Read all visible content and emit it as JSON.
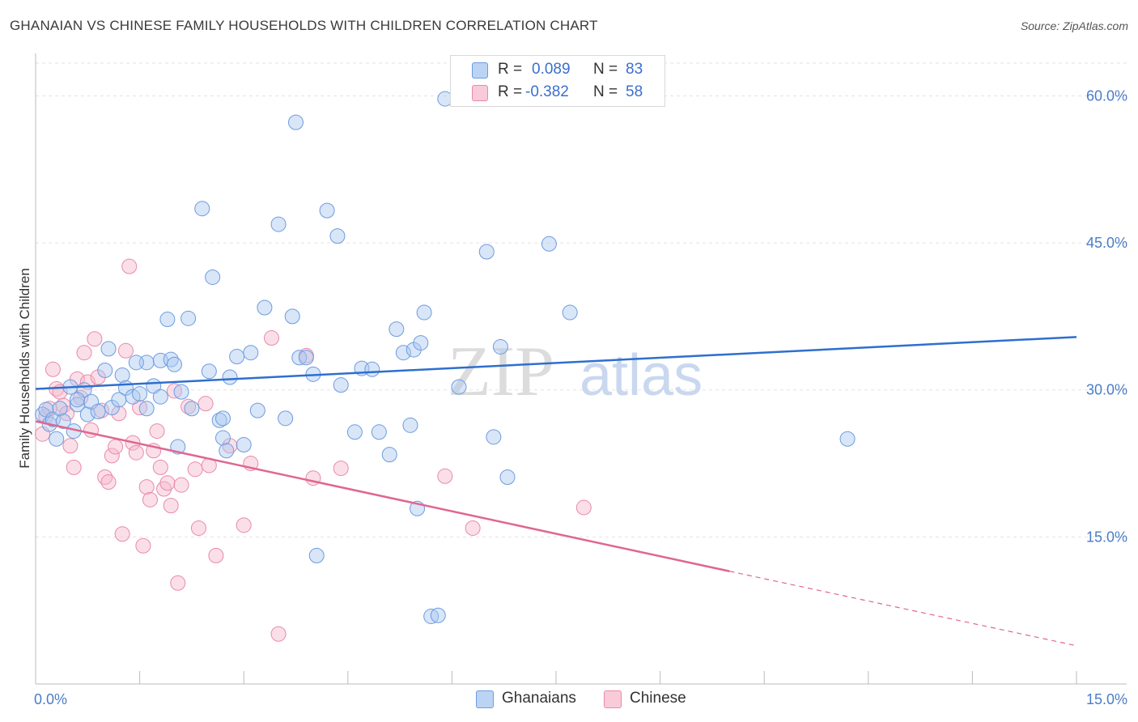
{
  "title": "GHANAIAN VS CHINESE FAMILY HOUSEHOLDS WITH CHILDREN CORRELATION CHART",
  "source": "Source: ZipAtlas.com",
  "watermark": {
    "zip": "ZIP",
    "atlas": "atlas"
  },
  "legend": {
    "rows": [
      {
        "r_label": "R =",
        "r_value": "0.089",
        "n_label": "N =",
        "n_value": "83"
      },
      {
        "r_label": "R =",
        "r_value": "-0.382",
        "n_label": "N =",
        "n_value": "58"
      }
    ]
  },
  "bottom_legend": {
    "ghanaians": "Ghanaians",
    "chinese": "Chinese"
  },
  "colors": {
    "ghanaian_fill": "#a9c7f0",
    "ghanaian_stroke": "#6d9be0",
    "ghanaian_line": "#2e6fce",
    "chinese_fill": "#f6b8cb",
    "chinese_stroke": "#e98aa8",
    "chinese_line": "#e06690",
    "tick_text": "#4a7cc9",
    "grid": "#e3e3e3"
  },
  "chart_data": {
    "type": "scatter",
    "title": "GHANAIAN VS CHINESE FAMILY HOUSEHOLDS WITH CHILDREN CORRELATION CHART",
    "ylabel": "Family Households with Children",
    "xlabel": "",
    "xlim": [
      0,
      15
    ],
    "ylim": [
      0,
      64
    ],
    "x_tick_labels": [
      "0.0%",
      "15.0%"
    ],
    "y_ticks": [
      15,
      30,
      45,
      60
    ],
    "y_tick_labels": [
      "15.0%",
      "30.0%",
      "45.0%",
      "60.0%"
    ],
    "series": [
      {
        "name": "Ghanaians",
        "r": 0.089,
        "n": 83,
        "trend": {
          "x0": 0.0,
          "y0": 30.1,
          "x1": 15.0,
          "y1": 35.4
        },
        "points": [
          [
            0.1,
            27.5
          ],
          [
            0.15,
            28
          ],
          [
            0.2,
            26.5
          ],
          [
            0.25,
            27
          ],
          [
            0.3,
            25
          ],
          [
            0.35,
            28.1
          ],
          [
            0.4,
            26.8
          ],
          [
            0.5,
            30.3
          ],
          [
            0.55,
            25.8
          ],
          [
            0.6,
            28.5
          ],
          [
            0.7,
            30
          ],
          [
            0.75,
            27.5
          ],
          [
            0.8,
            28.8
          ],
          [
            0.9,
            27.8
          ],
          [
            1.0,
            32
          ],
          [
            1.1,
            28.2
          ],
          [
            1.2,
            29
          ],
          [
            1.25,
            31.5
          ],
          [
            1.3,
            30.2
          ],
          [
            1.4,
            29.3
          ],
          [
            1.5,
            29.6
          ],
          [
            1.6,
            28.1
          ],
          [
            1.6,
            32.8
          ],
          [
            1.7,
            30.4
          ],
          [
            1.8,
            33
          ],
          [
            1.9,
            37.2
          ],
          [
            1.95,
            33.1
          ],
          [
            2.0,
            32.6
          ],
          [
            2.05,
            24.2
          ],
          [
            2.1,
            29.8
          ],
          [
            2.2,
            37.3
          ],
          [
            2.25,
            28.1
          ],
          [
            2.4,
            48.5
          ],
          [
            2.5,
            31.9
          ],
          [
            2.55,
            41.5
          ],
          [
            2.65,
            26.9
          ],
          [
            2.7,
            25.1
          ],
          [
            2.75,
            23.8
          ],
          [
            2.8,
            31.3
          ],
          [
            2.9,
            33.4
          ],
          [
            3.0,
            24.4
          ],
          [
            3.1,
            33.8
          ],
          [
            3.2,
            27.9
          ],
          [
            3.3,
            38.4
          ],
          [
            3.5,
            46.9
          ],
          [
            3.6,
            27.1
          ],
          [
            3.7,
            37.5
          ],
          [
            3.75,
            57.3
          ],
          [
            3.8,
            33.3
          ],
          [
            3.9,
            33.3
          ],
          [
            4.0,
            31.6
          ],
          [
            4.05,
            13.1
          ],
          [
            4.2,
            48.3
          ],
          [
            4.35,
            45.7
          ],
          [
            4.4,
            30.5
          ],
          [
            4.6,
            25.7
          ],
          [
            4.7,
            32.2
          ],
          [
            4.85,
            32.1
          ],
          [
            4.95,
            25.7
          ],
          [
            5.1,
            23.4
          ],
          [
            5.2,
            36.2
          ],
          [
            5.3,
            33.8
          ],
          [
            5.4,
            26.4
          ],
          [
            5.45,
            34.1
          ],
          [
            5.55,
            34.8
          ],
          [
            5.6,
            37.9
          ],
          [
            5.5,
            17.9
          ],
          [
            5.7,
            6.9
          ],
          [
            5.8,
            7.0
          ],
          [
            5.9,
            59.7
          ],
          [
            6.1,
            30.3
          ],
          [
            6.5,
            44.1
          ],
          [
            6.6,
            25.2
          ],
          [
            6.7,
            34.4
          ],
          [
            6.8,
            21.1
          ],
          [
            7.4,
            44.9
          ],
          [
            7.7,
            37.9
          ],
          [
            11.7,
            25.0
          ],
          [
            0.6,
            29.0
          ],
          [
            1.05,
            34.2
          ],
          [
            1.8,
            29.3
          ],
          [
            2.7,
            27.1
          ],
          [
            1.45,
            32.8
          ]
        ]
      },
      {
        "name": "Chinese",
        "r": -0.382,
        "n": 58,
        "trend": {
          "x0": 0.0,
          "y0": 26.8,
          "x1": 10.0,
          "y1": 11.5,
          "x_dash_end": 15.0,
          "y_dash_end": 3.9
        },
        "points": [
          [
            0.1,
            25.5
          ],
          [
            0.15,
            27.3
          ],
          [
            0.2,
            28.1
          ],
          [
            0.25,
            32.1
          ],
          [
            0.3,
            30.1
          ],
          [
            0.35,
            29.8
          ],
          [
            0.4,
            28.4
          ],
          [
            0.45,
            27.6
          ],
          [
            0.5,
            24.3
          ],
          [
            0.55,
            22.1
          ],
          [
            0.6,
            31.1
          ],
          [
            0.65,
            29.2
          ],
          [
            0.7,
            33.8
          ],
          [
            0.75,
            30.8
          ],
          [
            0.8,
            25.9
          ],
          [
            0.85,
            35.2
          ],
          [
            0.9,
            31.3
          ],
          [
            0.95,
            27.9
          ],
          [
            1.0,
            21.1
          ],
          [
            1.05,
            20.6
          ],
          [
            1.1,
            23.3
          ],
          [
            1.15,
            24.2
          ],
          [
            1.2,
            27.6
          ],
          [
            1.25,
            15.3
          ],
          [
            1.3,
            34.0
          ],
          [
            1.35,
            42.6
          ],
          [
            1.4,
            24.6
          ],
          [
            1.45,
            23.6
          ],
          [
            1.5,
            28.2
          ],
          [
            1.55,
            14.1
          ],
          [
            1.6,
            20.1
          ],
          [
            1.65,
            18.8
          ],
          [
            1.7,
            23.8
          ],
          [
            1.75,
            25.8
          ],
          [
            1.8,
            22.1
          ],
          [
            1.85,
            19.9
          ],
          [
            1.9,
            20.5
          ],
          [
            1.95,
            18.2
          ],
          [
            2.0,
            29.9
          ],
          [
            2.05,
            10.3
          ],
          [
            2.1,
            20.3
          ],
          [
            2.2,
            28.3
          ],
          [
            2.3,
            21.9
          ],
          [
            2.35,
            15.9
          ],
          [
            2.45,
            28.6
          ],
          [
            2.5,
            22.3
          ],
          [
            2.6,
            13.1
          ],
          [
            3.0,
            16.2
          ],
          [
            3.1,
            22.5
          ],
          [
            3.4,
            35.3
          ],
          [
            3.5,
            5.1
          ],
          [
            3.9,
            33.5
          ],
          [
            4.0,
            21.0
          ],
          [
            4.4,
            22.0
          ],
          [
            5.9,
            21.2
          ],
          [
            6.3,
            15.9
          ],
          [
            7.9,
            18.0
          ],
          [
            2.8,
            24.3
          ]
        ]
      }
    ]
  }
}
